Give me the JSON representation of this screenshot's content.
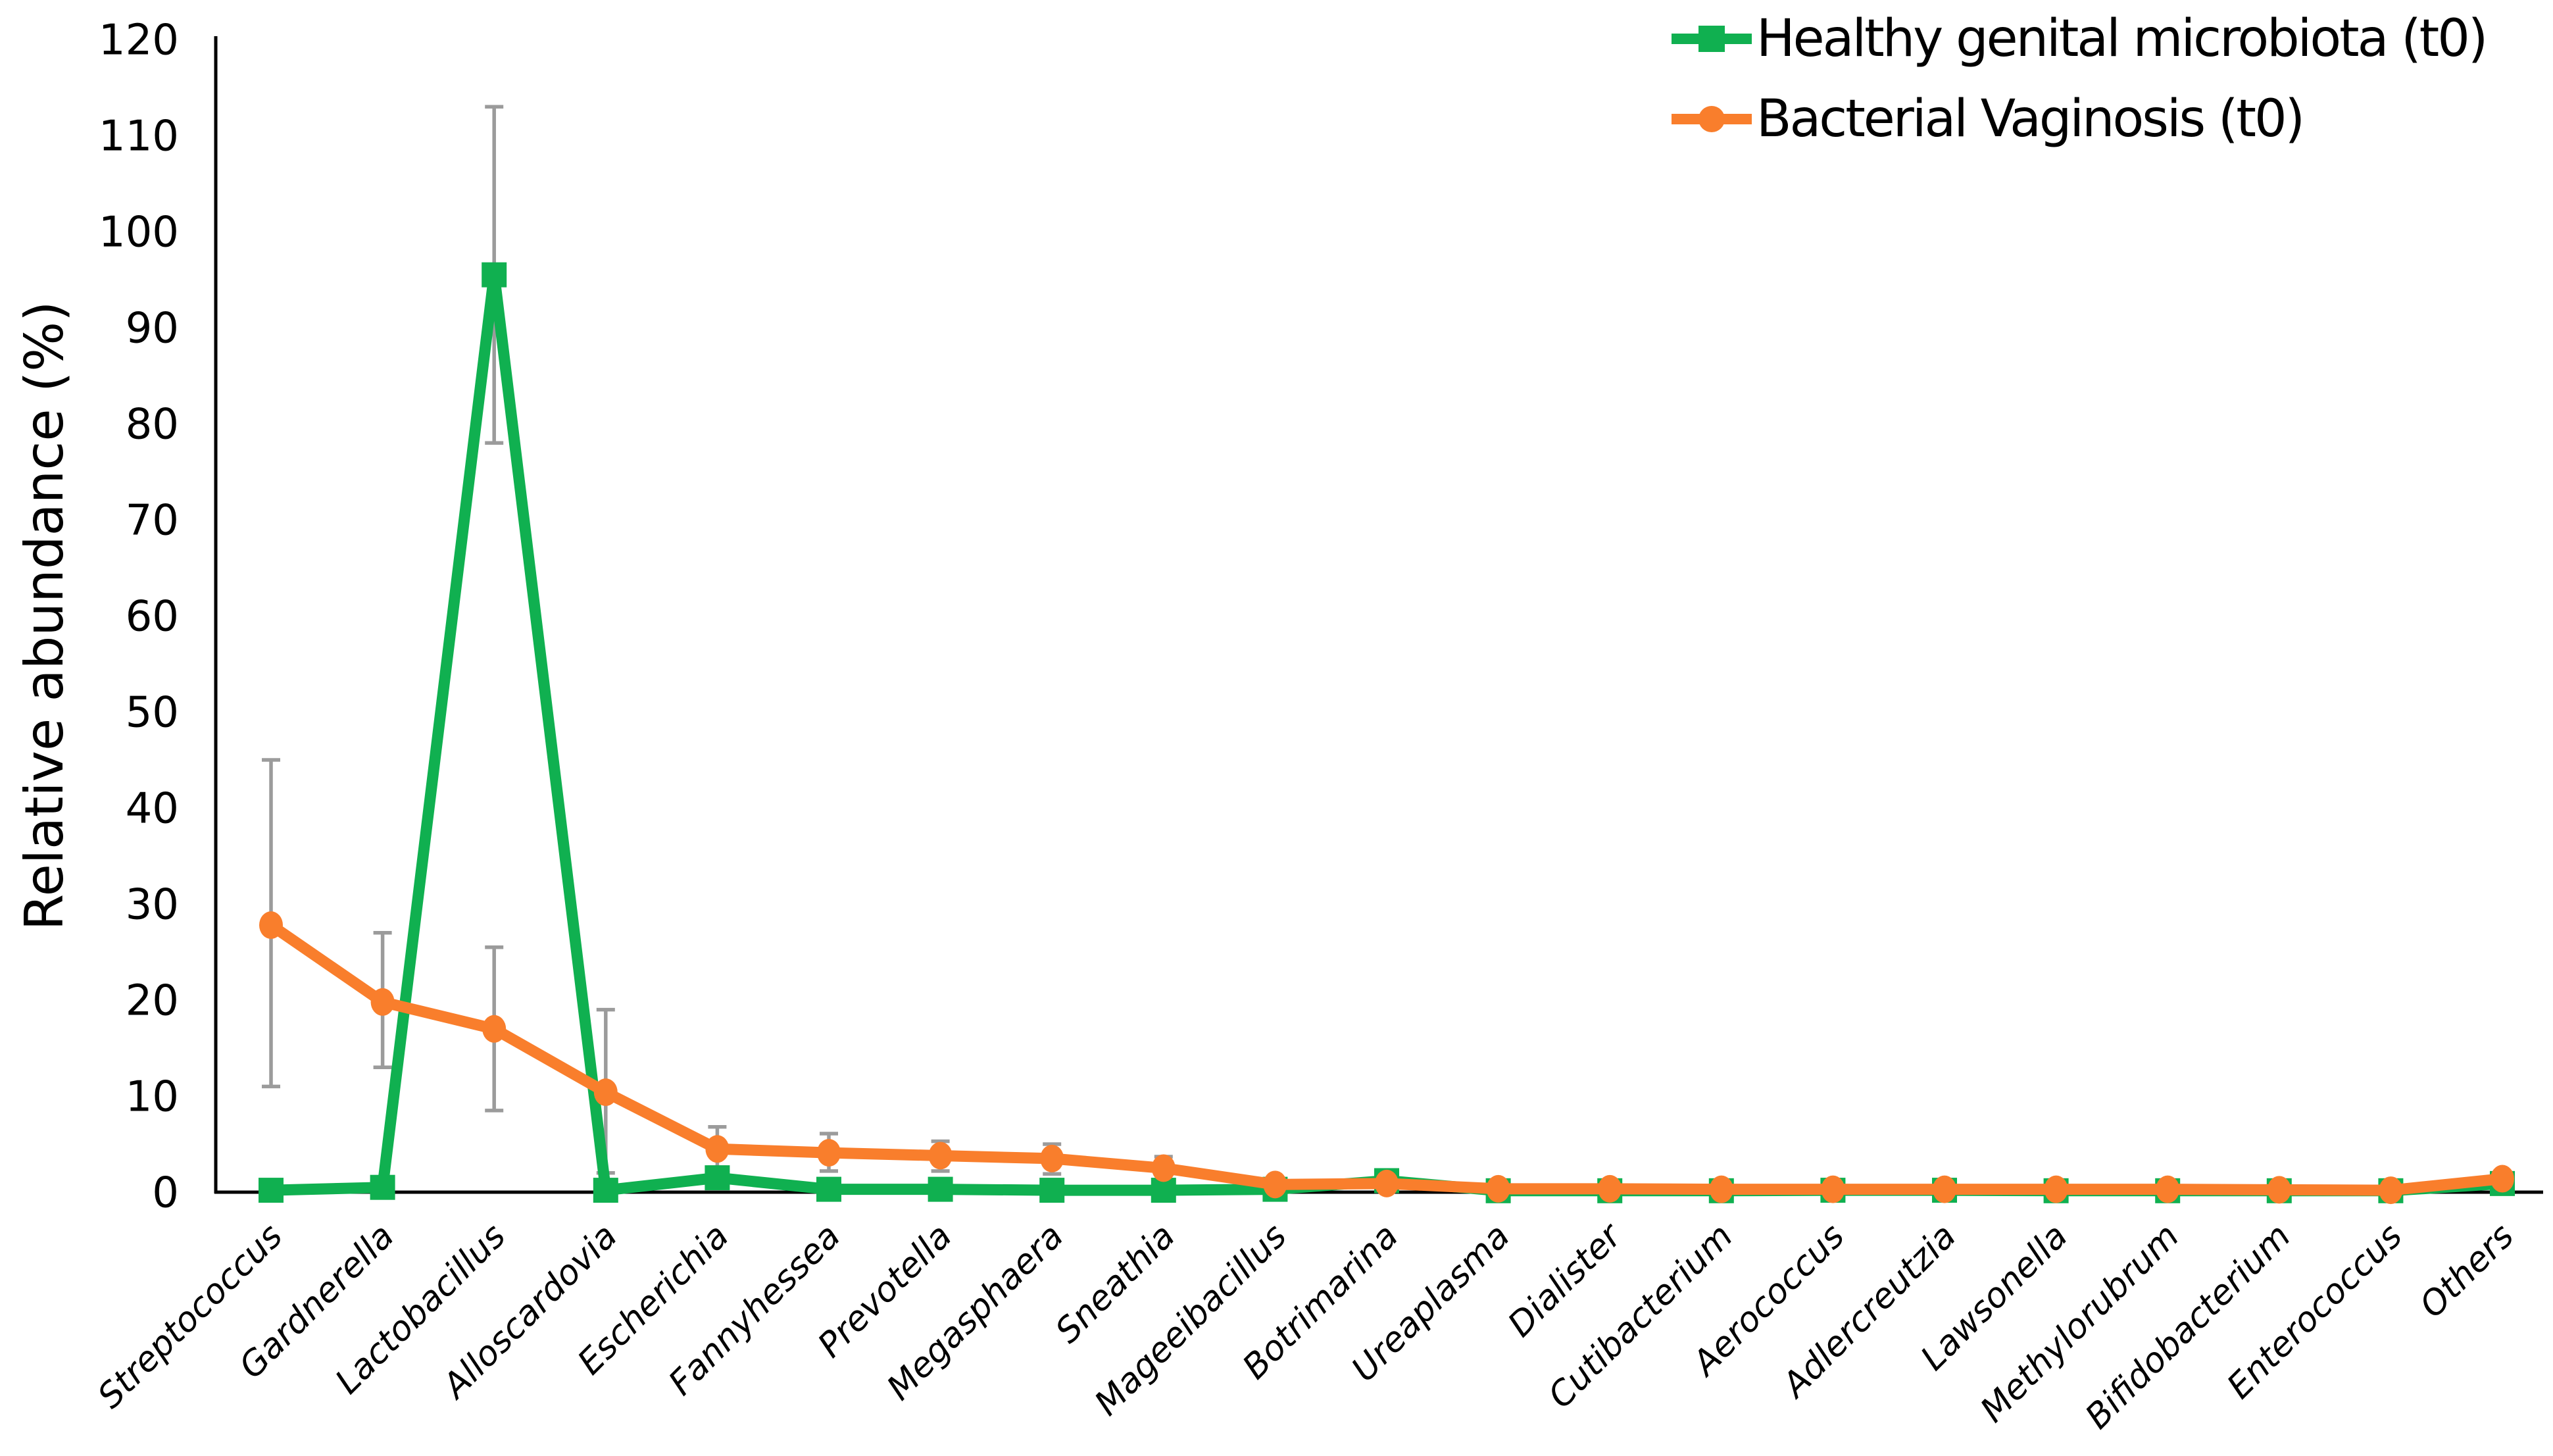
{
  "figure": {
    "background": "#ffffff",
    "axis_color": "#000000",
    "error_bar_color": "#9b9b9b"
  },
  "y_axis": {
    "title": "Relative abundance (%)",
    "min": 0,
    "max": 120,
    "tick_step": 10,
    "ticks": [
      0,
      10,
      20,
      30,
      40,
      50,
      60,
      70,
      80,
      90,
      100,
      110,
      120
    ]
  },
  "legend": {
    "items": [
      {
        "label": "Healthy genital microbiota (t0)",
        "color": "#10b050",
        "marker": "square"
      },
      {
        "label": "Bacterial Vaginosis (t0)",
        "color": "#f97e2c",
        "marker": "circle"
      }
    ]
  },
  "chart_data": {
    "type": "line",
    "title": "",
    "xlabel": "",
    "ylabel": "Relative abundance (%)",
    "ylim": [
      0,
      120
    ],
    "grid": false,
    "legend_position": "top-right",
    "categories": [
      "Streptococcus",
      "Gardnerella",
      "Lactobacillus",
      "Alloscardovia",
      "Escherichia",
      "Fannyhessea",
      "Prevotella",
      "Megasphaera",
      "Sneathia",
      "Mageeibacillus",
      "Botrimarina",
      "Ureaplasma",
      "Dialister",
      "Cutibacterium",
      "Aerococcus",
      "Adlercreutzia",
      "Lawsonella",
      "Methylorubrum",
      "Bifidobacterium",
      "Enterococcus",
      "Others"
    ],
    "series": [
      {
        "name": "Healthy genital microbiota (t0)",
        "color": "#10b050",
        "marker": "square",
        "values": [
          0.2,
          0.5,
          95.5,
          0.2,
          1.5,
          0.3,
          0.3,
          0.2,
          0.2,
          0.3,
          1.2,
          0.15,
          0.15,
          0.15,
          0.2,
          0.2,
          0.15,
          0.15,
          0.15,
          0.15,
          0.9
        ],
        "error_low": [
          0.2,
          0.5,
          78.0,
          0.2,
          1.5,
          0.3,
          0.3,
          0.2,
          0.2,
          0.3,
          1.2,
          0.15,
          0.15,
          0.15,
          0.2,
          0.2,
          0.15,
          0.15,
          0.15,
          0.15,
          0.9
        ],
        "error_high": [
          0.2,
          0.5,
          113.0,
          0.2,
          1.5,
          0.3,
          0.3,
          0.2,
          0.2,
          0.3,
          1.2,
          0.15,
          0.15,
          0.15,
          0.2,
          0.2,
          0.15,
          0.15,
          0.15,
          0.15,
          0.9
        ]
      },
      {
        "name": "Bacterial Vaginosis (t0)",
        "color": "#f97e2c",
        "marker": "circle",
        "values": [
          27.8,
          19.8,
          17.0,
          10.4,
          4.5,
          4.1,
          3.8,
          3.5,
          2.5,
          0.8,
          0.9,
          0.35,
          0.35,
          0.3,
          0.3,
          0.3,
          0.3,
          0.3,
          0.25,
          0.2,
          1.4
        ],
        "error_low": [
          11.0,
          13.0,
          8.5,
          2.0,
          2.6,
          2.2,
          2.2,
          1.9,
          1.0,
          0.8,
          0.9,
          0.35,
          0.35,
          0.3,
          0.3,
          0.3,
          0.3,
          0.3,
          0.25,
          0.2,
          1.4
        ],
        "error_high": [
          45.0,
          27.0,
          25.5,
          19.0,
          6.8,
          6.1,
          5.3,
          5.0,
          3.7,
          0.8,
          0.9,
          0.35,
          0.35,
          0.3,
          0.3,
          0.3,
          0.3,
          0.3,
          0.25,
          0.2,
          1.4
        ]
      }
    ]
  }
}
